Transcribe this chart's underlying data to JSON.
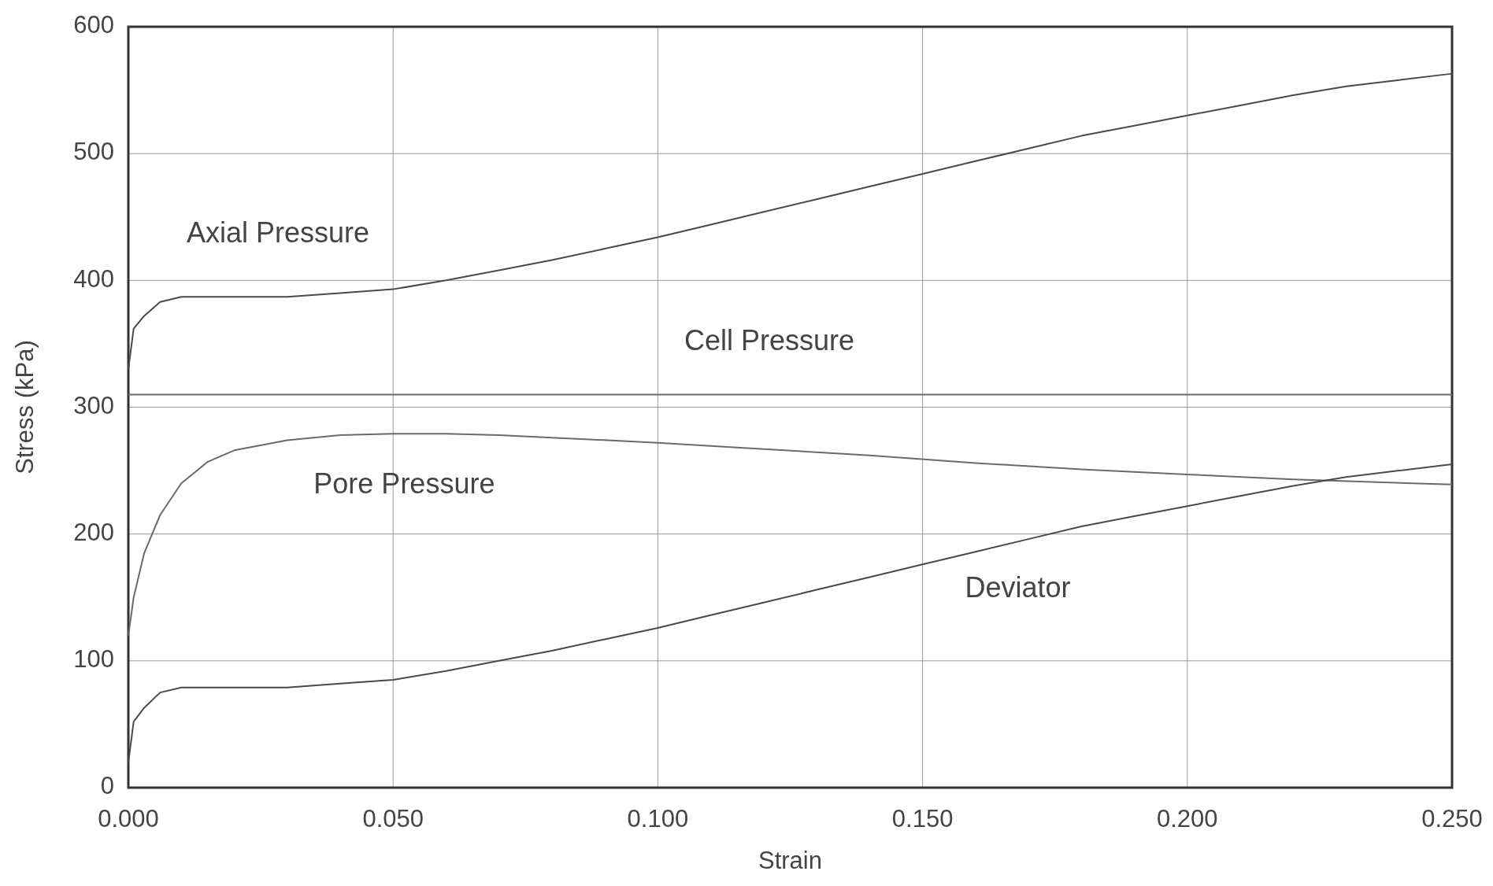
{
  "chart_data": {
    "type": "line",
    "xlabel": "Strain",
    "ylabel": "Stress (kPa)",
    "xlim": [
      0,
      0.25
    ],
    "ylim": [
      0,
      600
    ],
    "xticks": [
      {
        "value": 0,
        "label": "0.000"
      },
      {
        "value": 0.05,
        "label": "0.050"
      },
      {
        "value": 0.1,
        "label": "0.100"
      },
      {
        "value": 0.15,
        "label": "0.150"
      },
      {
        "value": 0.2,
        "label": "0.200"
      },
      {
        "value": 0.25,
        "label": "0.250"
      }
    ],
    "yticks": [
      0,
      100,
      200,
      300,
      400,
      500,
      600
    ],
    "grid": true,
    "marker": "none",
    "line_style": "solid",
    "series": [
      {
        "name": "Axial Pressure",
        "color": "#4a4a4a",
        "x": [
          0,
          0.001,
          0.003,
          0.006,
          0.01,
          0.02,
          0.03,
          0.04,
          0.05,
          0.06,
          0.07,
          0.08,
          0.09,
          0.1,
          0.11,
          0.12,
          0.13,
          0.14,
          0.15,
          0.16,
          0.17,
          0.18,
          0.19,
          0.2,
          0.21,
          0.22,
          0.23,
          0.24,
          0.25
        ],
        "values": [
          330,
          362,
          372,
          383,
          387,
          387,
          387,
          390,
          393,
          400,
          408,
          416,
          425,
          434,
          444,
          454,
          464,
          474,
          484,
          494,
          504,
          514,
          522,
          530,
          538,
          546,
          553,
          558,
          563
        ]
      },
      {
        "name": "Cell Pressure",
        "color": "#6a6a6a",
        "x": [
          0,
          0.05,
          0.1,
          0.15,
          0.2,
          0.25
        ],
        "values": [
          310,
          310,
          310,
          310,
          310,
          310
        ]
      },
      {
        "name": "Pore Pressure",
        "color": "#6a6a6a",
        "x": [
          0,
          0.001,
          0.003,
          0.006,
          0.01,
          0.015,
          0.02,
          0.03,
          0.04,
          0.05,
          0.06,
          0.07,
          0.08,
          0.1,
          0.12,
          0.14,
          0.16,
          0.18,
          0.2,
          0.22,
          0.25
        ],
        "values": [
          120,
          150,
          185,
          215,
          240,
          257,
          266,
          274,
          278,
          279,
          279,
          278,
          276,
          272,
          267,
          262,
          256,
          251,
          247,
          243,
          239
        ]
      },
      {
        "name": "Deviator",
        "color": "#4a4a4a",
        "x": [
          0,
          0.001,
          0.003,
          0.006,
          0.01,
          0.02,
          0.03,
          0.04,
          0.05,
          0.06,
          0.07,
          0.08,
          0.09,
          0.1,
          0.11,
          0.12,
          0.13,
          0.14,
          0.15,
          0.16,
          0.17,
          0.18,
          0.19,
          0.2,
          0.21,
          0.22,
          0.23,
          0.24,
          0.25
        ],
        "values": [
          20,
          52,
          63,
          75,
          79,
          79,
          79,
          82,
          85,
          92,
          100,
          108,
          117,
          126,
          136,
          146,
          156,
          166,
          176,
          186,
          196,
          206,
          214,
          222,
          230,
          238,
          245,
          250,
          255
        ]
      }
    ]
  }
}
